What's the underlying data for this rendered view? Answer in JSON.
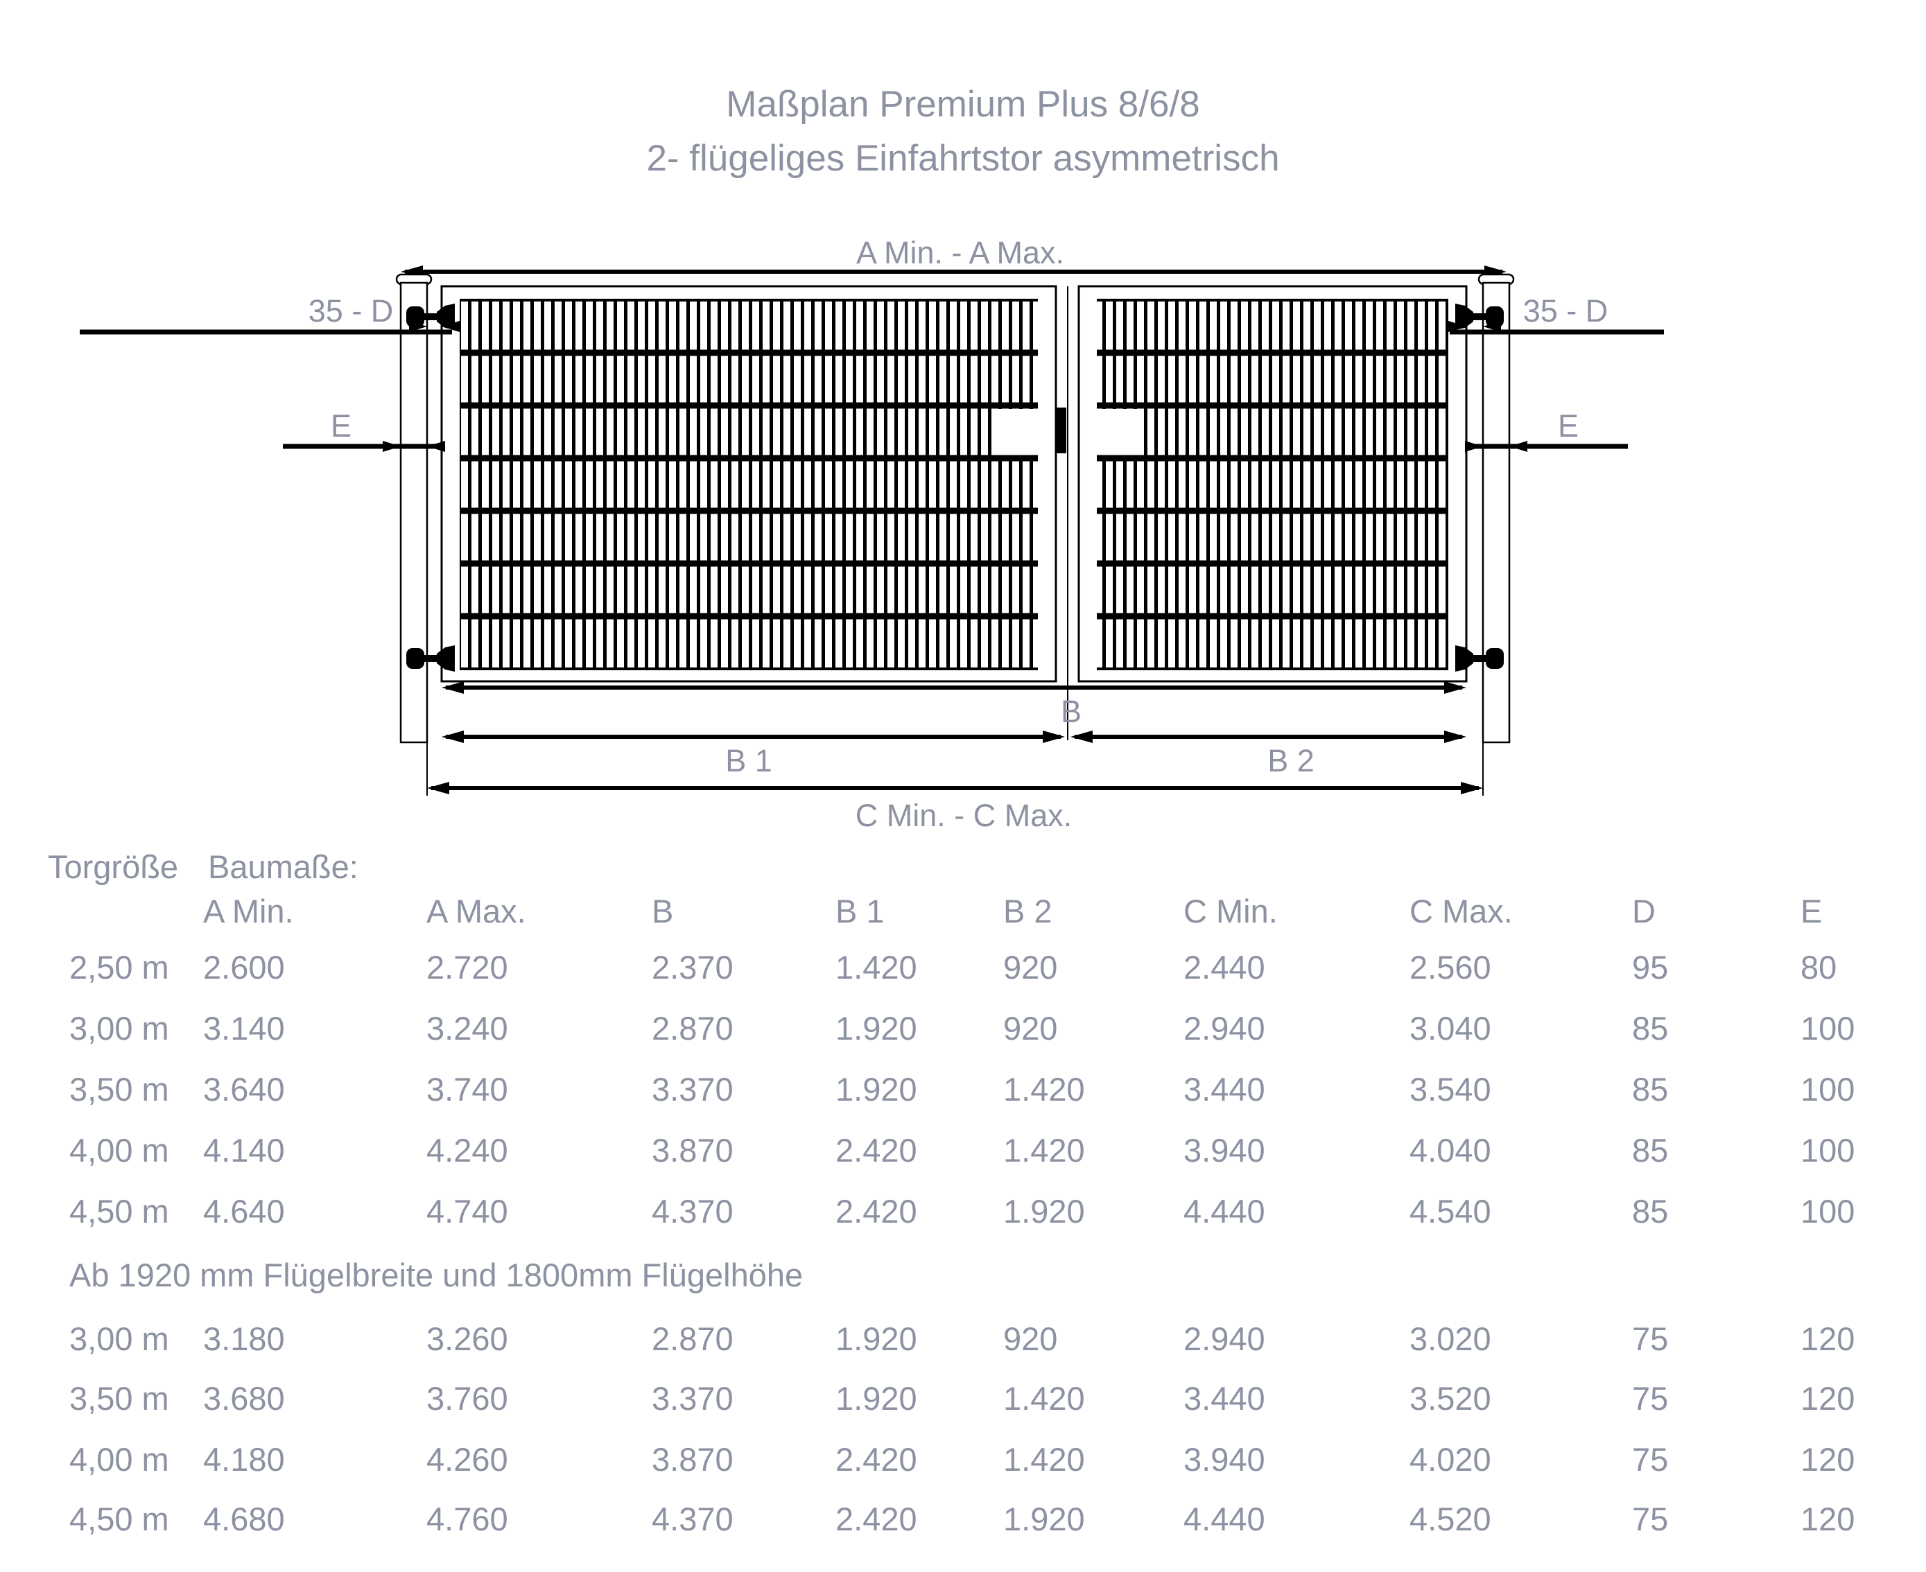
{
  "title": {
    "line1": "Maßplan Premium Plus 8/6/8",
    "line2": "2- flügeliges Einfahrtstor asymmetrisch"
  },
  "diagram": {
    "labels": {
      "a": "A Min. - A Max.",
      "d_left": "35 - D",
      "d_right": "35 - D",
      "e_left": "E",
      "e_right": "E",
      "b": "B",
      "b1": "B 1",
      "b2": "B 2",
      "c": "C Min. - C Max."
    }
  },
  "table": {
    "col0_header": "Torgröße",
    "group_header": "Baumaße:",
    "columns": [
      "A Min.",
      "A Max.",
      "B",
      "B 1",
      "B 2",
      "C Min.",
      "C Max.",
      "D",
      "E"
    ],
    "rows_standard": [
      {
        "size": "2,50 m",
        "values": [
          "2.600",
          "2.720",
          "2.370",
          "1.420",
          "920",
          "2.440",
          "2.560",
          "95",
          "80"
        ]
      },
      {
        "size": "3,00 m",
        "values": [
          "3.140",
          "3.240",
          "2.870",
          "1.920",
          "920",
          "2.940",
          "3.040",
          "85",
          "100"
        ]
      },
      {
        "size": "3,50 m",
        "values": [
          "3.640",
          "3.740",
          "3.370",
          "1.920",
          "1.420",
          "3.440",
          "3.540",
          "85",
          "100"
        ]
      },
      {
        "size": "4,00 m",
        "values": [
          "4.140",
          "4.240",
          "3.870",
          "2.420",
          "1.420",
          "3.940",
          "4.040",
          "85",
          "100"
        ]
      },
      {
        "size": "4,50 m",
        "values": [
          "4.640",
          "4.740",
          "4.370",
          "2.420",
          "1.920",
          "4.440",
          "4.540",
          "85",
          "100"
        ]
      }
    ],
    "note": "Ab 1920 mm Flügelbreite und 1800mm Flügelhöhe",
    "rows_large": [
      {
        "size": "3,00 m",
        "values": [
          "3.180",
          "3.260",
          "2.870",
          "1.920",
          "920",
          "2.940",
          "3.020",
          "75",
          "120"
        ]
      },
      {
        "size": "3,50 m",
        "values": [
          "3.680",
          "3.760",
          "3.370",
          "1.920",
          "1.420",
          "3.440",
          "3.520",
          "75",
          "120"
        ]
      },
      {
        "size": "4,00 m",
        "values": [
          "4.180",
          "4.260",
          "3.870",
          "2.420",
          "1.420",
          "3.940",
          "4.020",
          "75",
          "120"
        ]
      },
      {
        "size": "4,50 m",
        "values": [
          "4.680",
          "4.760",
          "4.370",
          "2.420",
          "1.920",
          "4.440",
          "4.520",
          "75",
          "120"
        ]
      }
    ]
  },
  "colors": {
    "text": "#8d92a2",
    "line": "#000000"
  }
}
